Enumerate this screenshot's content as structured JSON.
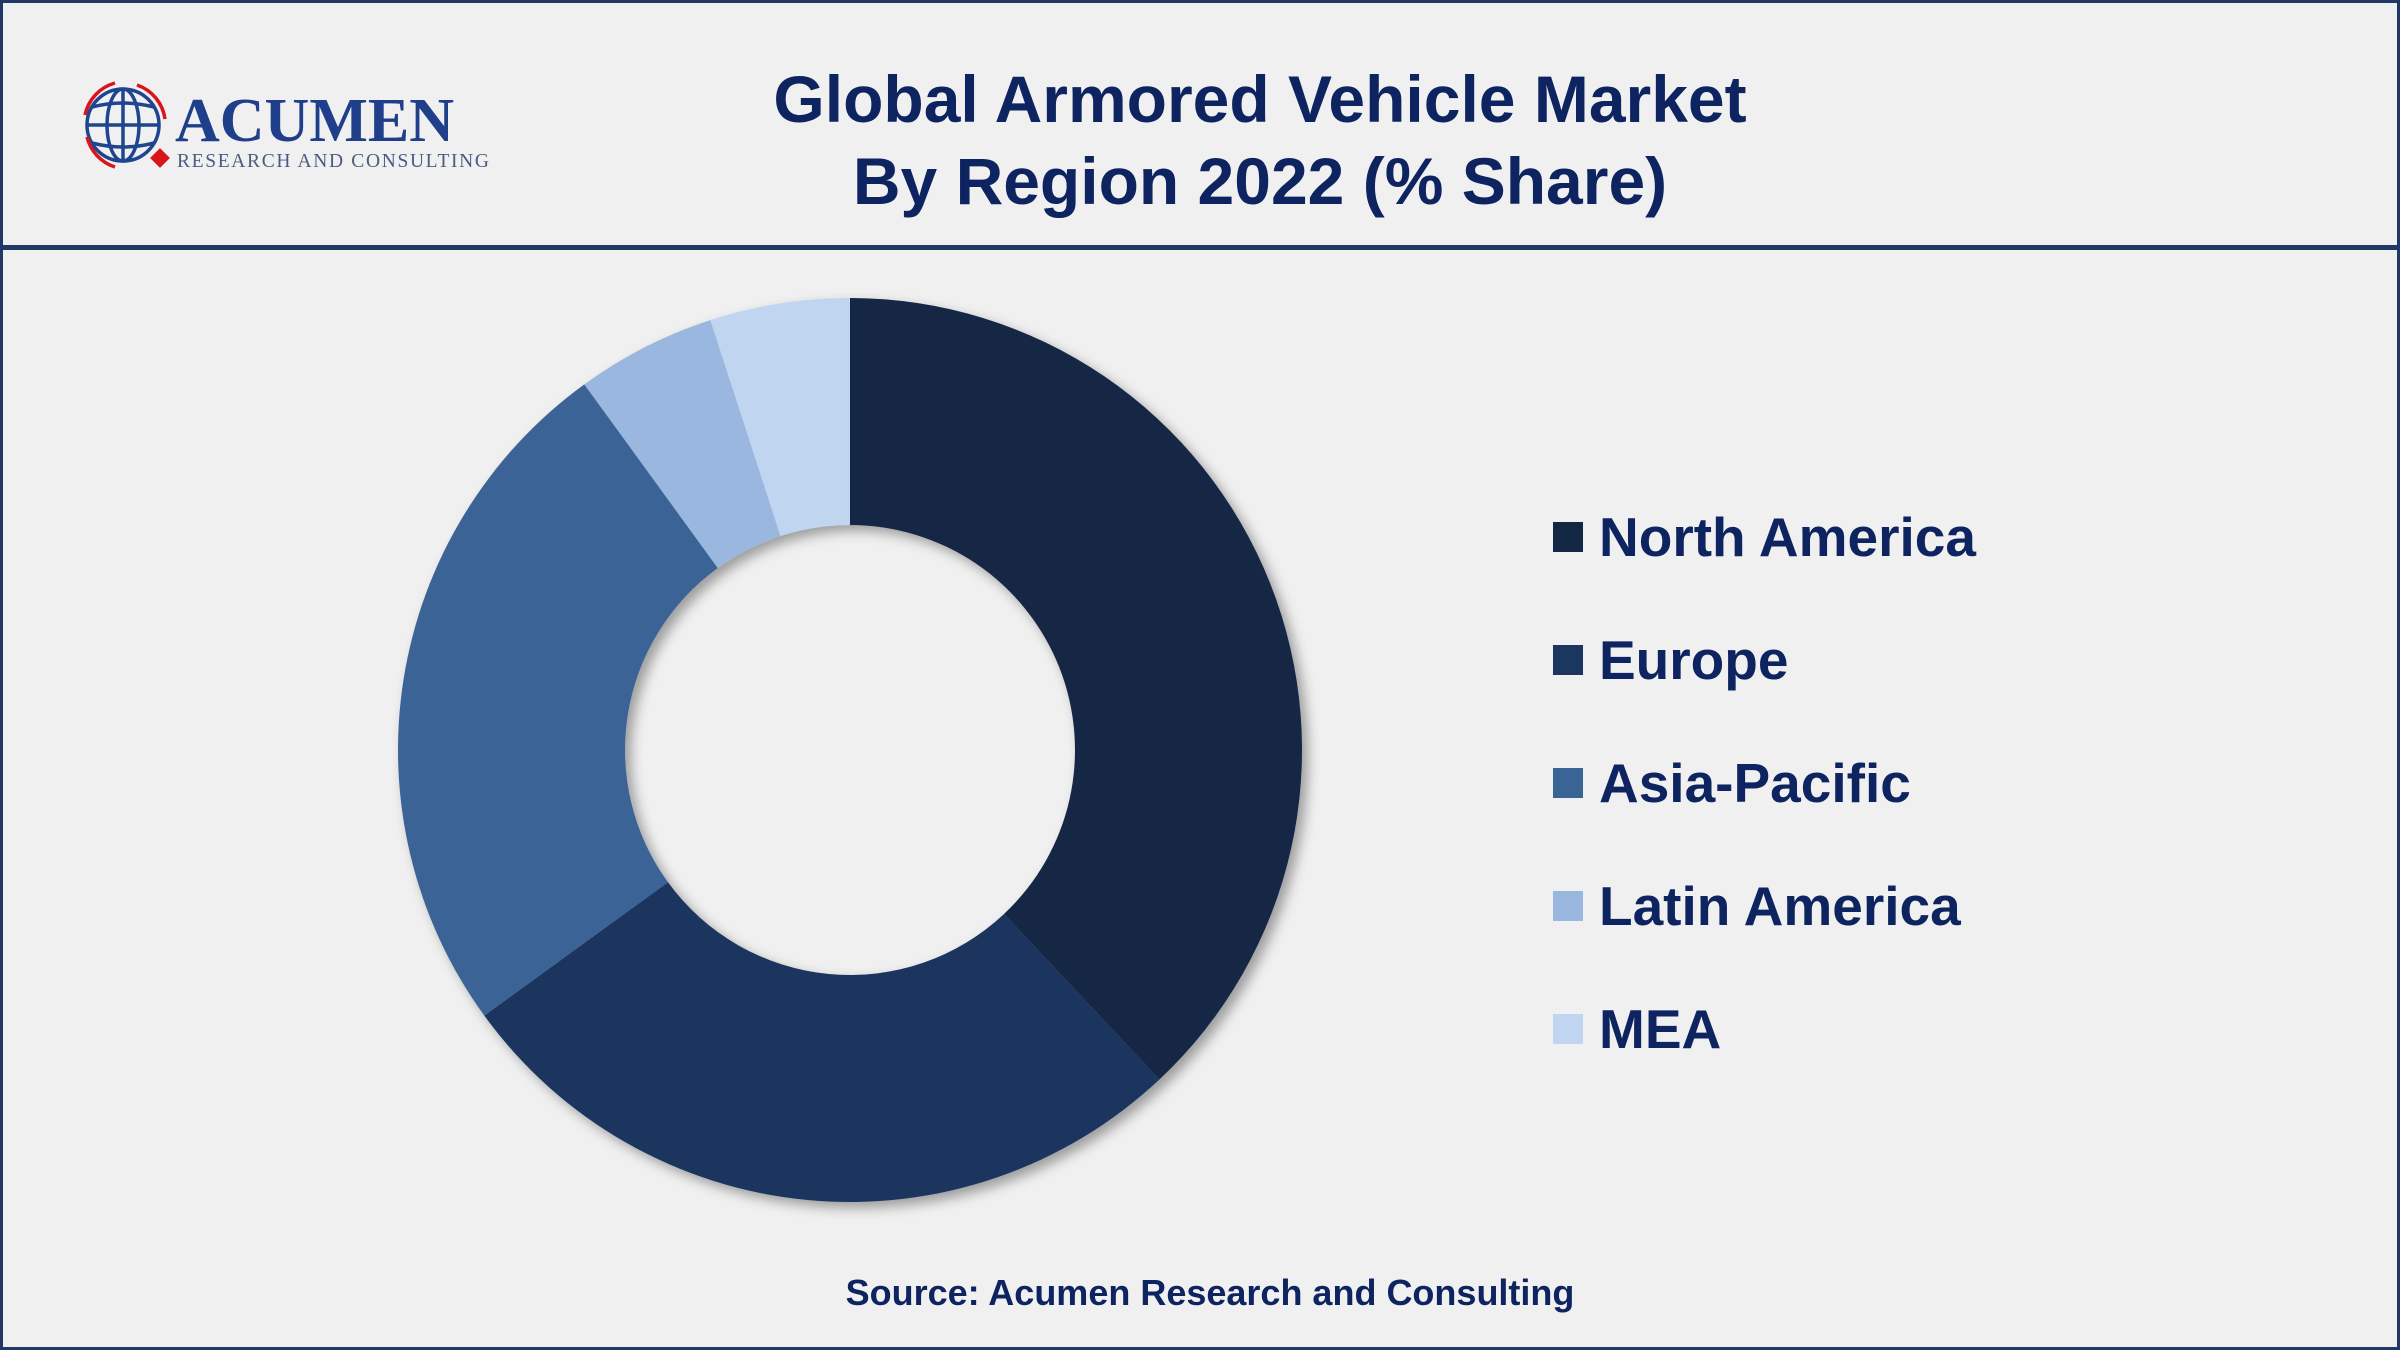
{
  "header": {
    "logo_text": "ACUMEN",
    "logo_subtext": "RESEARCH AND CONSULTING",
    "title_line1": "Global Armored Vehicle Market",
    "title_line2": "By Region 2022 (% Share)"
  },
  "chart_data": {
    "type": "pie",
    "variant": "donut",
    "title": "Global Armored Vehicle Market By Region 2022 (% Share)",
    "categories": [
      "North America",
      "Europe",
      "Asia-Pacific",
      "Latin America",
      "MEA"
    ],
    "values": [
      38,
      27,
      25,
      5,
      5
    ],
    "unit": "%",
    "colors": [
      "#132744",
      "#1b365f",
      "#3a6496",
      "#9ab8df",
      "#c0d5ef"
    ],
    "start": "top",
    "direction": "clockwise",
    "legend_placement": "right",
    "data_labels": false
  },
  "footer": {
    "source": "Source: Acumen Research and Consulting"
  },
  "colors": {
    "background": "#f0f0f0",
    "border": "#1f3864",
    "title": "#0e2460",
    "logo_red": "#d9141b"
  }
}
